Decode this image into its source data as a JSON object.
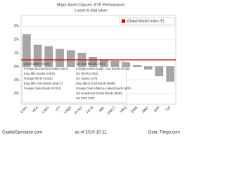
{
  "chart_data": {
    "type": "bar",
    "title": "Major Asset Classes: ETF Performance",
    "subtitle": "1 week % total return",
    "categories": [
      "GSG",
      "VEA",
      "VWO",
      "VTI",
      "VNQI",
      "HYXU",
      "PICB",
      "JNK",
      "EMLC",
      "VNQ",
      "EMB",
      "BND",
      "WIP",
      "TIP"
    ],
    "values": [
      2.4,
      1.6,
      1.5,
      1.3,
      1.2,
      1.0,
      0.7,
      0.5,
      0.4,
      0.3,
      0.1,
      -0.2,
      -0.7,
      -1.1
    ],
    "color": "#a6a6a6",
    "reference_line": {
      "name": "Global Market Index (F)",
      "value": 0.5,
      "color": "#cc0000"
    },
    "ylim": [
      -2.8,
      3.8
    ],
    "yticks": [
      {
        "value": 3,
        "label": "3%"
      },
      {
        "value": 2,
        "label": "2%"
      },
      {
        "value": 1,
        "label": "1%"
      },
      {
        "value": 0,
        "label": "0%"
      },
      {
        "value": -1,
        "label": "-1%"
      },
      {
        "value": -2,
        "label": "-2%"
      }
    ],
    "grid": true,
    "key": [
      "Commodities (GSG)",
      "Foreign Stocks Devl'd Mkts (VEA)",
      "Emg Mkt Stocks (VWO)",
      "Foreign REITs (VNQI)",
      "Emg Mkt Govt Bonds (EMLC)",
      "Foreign Junk Bonds (HYXU)",
      "US Junk Bonds (JNK)",
      "Foreign Invest-Grade Corp Bonds (PICB)",
      "US REITs (VNQ)",
      "US Stocks (VTI)",
      "Emg Mkt $ Govt Bonds (EMB)",
      "Foreign Govt Inflation-Linked Bonds (WIP)",
      "US Investment Grade Bonds (BND)",
      "US TIPS (TIP)"
    ],
    "footer": {
      "left": "CapitalSpectator.com",
      "center": "as of 2019-10-11",
      "right": "Data: Tiingo.com"
    }
  }
}
